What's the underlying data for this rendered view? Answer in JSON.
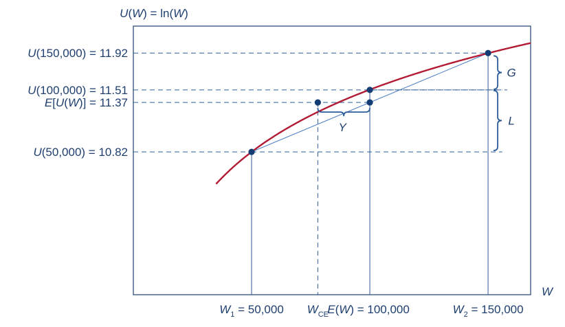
{
  "chart_data": {
    "type": "line",
    "title": "",
    "function": "U(W) = ln(W)",
    "ylabel": "U(W) = ln(W)",
    "xlabel": "W",
    "xlim": [
      0,
      168000
    ],
    "ylim": [
      9.23,
      12.22
    ],
    "grid": false,
    "curve": {
      "name": "",
      "x_start": 35000,
      "x_end": 168000,
      "color": "#b31b34"
    },
    "chord": {
      "from": [
        50000,
        10.82
      ],
      "to": [
        150000,
        11.92
      ]
    },
    "points": [
      {
        "x": 50000,
        "y": 10.82
      },
      {
        "x": 78000,
        "y": 11.37
      },
      {
        "x": 100000,
        "y": 11.37
      },
      {
        "x": 100000,
        "y": 11.51
      },
      {
        "x": 150000,
        "y": 11.92
      }
    ],
    "y_ticks": [
      {
        "value": 11.92,
        "fn": "U",
        "paren": "150,000",
        "num": "11.92"
      },
      {
        "value": 11.51,
        "fn": "U",
        "paren": "100,000",
        "num": "11.51"
      },
      {
        "value": 11.37,
        "fn": "E[U(W)]",
        "paren": "",
        "num": "11.37"
      },
      {
        "value": 10.82,
        "fn": "U",
        "paren": "50,000",
        "num": "10.82"
      }
    ],
    "x_ticks": [
      {
        "value": 50000,
        "main": "W",
        "sub": "1",
        "rest": " = 50,000",
        "dashed": false
      },
      {
        "value": 78000,
        "main": "W",
        "sub": "CE",
        "rest": "",
        "dashed": true
      },
      {
        "value": 100000,
        "main": "E(W)",
        "sub": "",
        "rest": " = 100,000",
        "dashed": false
      },
      {
        "value": 150000,
        "main": "W",
        "sub": "2",
        "rest": " = 150,000",
        "dashed": false
      }
    ],
    "annotations": [
      {
        "label": "G",
        "between": [
          11.51,
          11.92
        ]
      },
      {
        "label": "L",
        "between": [
          10.82,
          11.51
        ]
      },
      {
        "label": "Y",
        "between_x": [
          78000,
          100000
        ]
      }
    ],
    "colors": {
      "curve": "#b31b34",
      "ink": "#1f3f6e",
      "guide": "#2d5c9a",
      "point": "#123c73"
    }
  }
}
